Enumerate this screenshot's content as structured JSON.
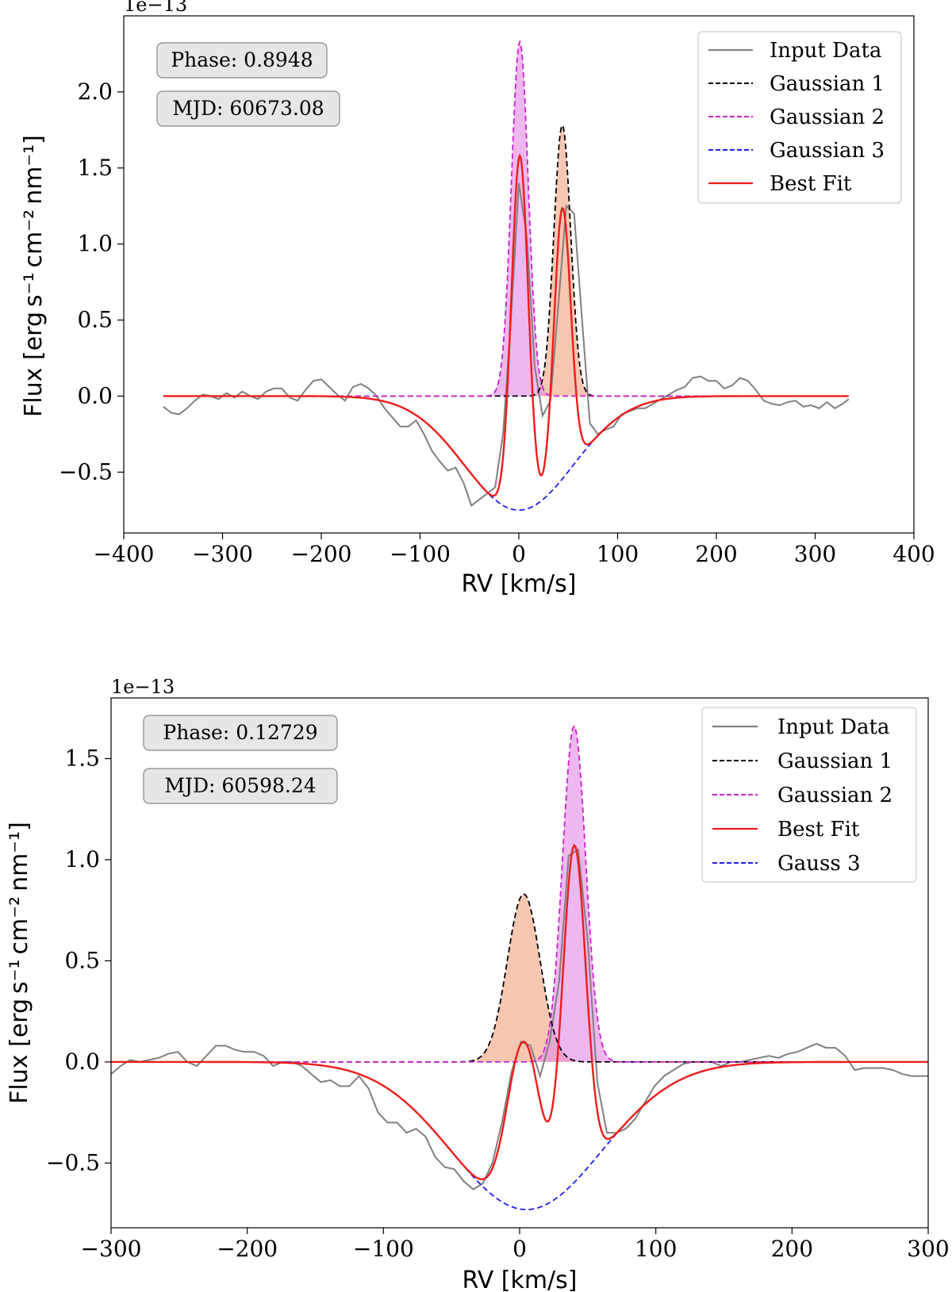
{
  "chart_data": [
    {
      "type": "line",
      "offset_label": "1e−13",
      "xlabel": "RV [km/s]",
      "ylabel": "Flux [erg s⁻¹ cm⁻² nm⁻¹]",
      "xlim": [
        -400,
        400
      ],
      "ylim": [
        -0.9,
        2.5
      ],
      "xticks": [
        -400,
        -300,
        -200,
        -100,
        0,
        100,
        200,
        300,
        400
      ],
      "xtick_labels": [
        "−400",
        "−300",
        "−200",
        "−100",
        "0",
        "100",
        "200",
        "300",
        "400"
      ],
      "yticks": [
        -0.5,
        0.0,
        0.5,
        1.0,
        1.5,
        2.0
      ],
      "ytick_labels": [
        "−0.5",
        "0.0",
        "0.5",
        "1.0",
        "1.5",
        "2.0"
      ],
      "annotations": [
        "Phase: 0.8948",
        "MJD: 60673.08"
      ],
      "legend_position": "top-right",
      "input_data": {
        "name": "Input Data",
        "color": "#808080",
        "x": [
          -360,
          -352,
          -344,
          -336,
          -328,
          -320,
          -312,
          -304,
          -296,
          -288,
          -280,
          -272,
          -264,
          -256,
          -248,
          -240,
          -232,
          -224,
          -216,
          -208,
          -200,
          -192,
          -184,
          -176,
          -168,
          -160,
          -152,
          -144,
          -136,
          -128,
          -120,
          -112,
          -104,
          -96,
          -88,
          -80,
          -72,
          -64,
          -56,
          -48,
          -40,
          -32,
          -24,
          -16,
          -8,
          0,
          8,
          16,
          24,
          32,
          40,
          48,
          56,
          64,
          72,
          80,
          88,
          96,
          104,
          112,
          120,
          128,
          136,
          144,
          152,
          160,
          168,
          176,
          184,
          192,
          200,
          208,
          216,
          224,
          232,
          240,
          248,
          256,
          264,
          272,
          280,
          288,
          296,
          304,
          312,
          320,
          328,
          334
        ],
        "y": [
          -0.07,
          -0.11,
          -0.12,
          -0.08,
          -0.03,
          0.01,
          0.0,
          -0.02,
          0.02,
          -0.01,
          0.03,
          0.0,
          -0.02,
          0.03,
          0.05,
          0.05,
          -0.01,
          -0.03,
          0.04,
          0.1,
          0.11,
          0.06,
          0.01,
          -0.03,
          0.06,
          0.08,
          0.05,
          0.0,
          -0.08,
          -0.14,
          -0.2,
          -0.2,
          -0.16,
          -0.25,
          -0.36,
          -0.43,
          -0.49,
          -0.47,
          -0.57,
          -0.72,
          -0.68,
          -0.64,
          -0.6,
          -0.25,
          0.5,
          1.4,
          1.05,
          0.2,
          -0.13,
          -0.03,
          0.6,
          1.25,
          1.2,
          0.5,
          -0.18,
          -0.25,
          -0.22,
          -0.2,
          -0.12,
          -0.1,
          -0.08,
          -0.08,
          -0.05,
          -0.02,
          0.01,
          0.04,
          0.06,
          0.12,
          0.13,
          0.1,
          0.1,
          0.05,
          0.07,
          0.12,
          0.1,
          0.04,
          -0.03,
          -0.05,
          -0.06,
          -0.04,
          -0.03,
          -0.07,
          -0.06,
          -0.08,
          -0.04,
          -0.08,
          -0.05,
          -0.02
        ]
      },
      "gaussians": [
        {
          "name": "Gaussian 1",
          "color": "#000000",
          "amp": 1.78,
          "mu": 44,
          "sigma": 8.5,
          "fill": "#f4a582",
          "x_range": [
            -360,
            334
          ]
        },
        {
          "name": "Gaussian 2",
          "color": "#cc22cc",
          "amp": 2.33,
          "mu": 1,
          "sigma": 8.5,
          "fill": "#e58ae5",
          "x_range": [
            -360,
            334
          ]
        },
        {
          "name": "Gaussian 3",
          "color": "#1f1fee",
          "amp": -0.75,
          "mu": 0,
          "sigma": 55,
          "x_range": [
            -30,
            80
          ]
        }
      ],
      "best_fit": {
        "name": "Best Fit",
        "color": "#ee1c1c"
      },
      "legend": [
        "Input Data",
        "Gaussian 1",
        "Gaussian 2",
        "Gaussian 3",
        "Best Fit"
      ]
    },
    {
      "type": "line",
      "offset_label": "1e−13",
      "xlabel": "RV [km/s]",
      "ylabel": "Flux [erg s⁻¹ cm⁻² nm⁻¹]",
      "xlim": [
        -300,
        300
      ],
      "ylim": [
        -0.82,
        1.8
      ],
      "xticks": [
        -300,
        -200,
        -100,
        0,
        100,
        200,
        300
      ],
      "xtick_labels": [
        "−300",
        "−200",
        "−100",
        "0",
        "100",
        "200",
        "300"
      ],
      "yticks": [
        -0.5,
        0.0,
        0.5,
        1.0,
        1.5
      ],
      "ytick_labels": [
        "−0.5",
        "0.0",
        "0.5",
        "1.0",
        "1.5"
      ],
      "annotations": [
        "Phase: 0.12729",
        "MJD: 60598.24"
      ],
      "legend_position": "top-right",
      "input_data": {
        "name": "Input Data",
        "color": "#808080",
        "x": [
          -300,
          -293,
          -286,
          -279,
          -272,
          -265,
          -258,
          -251,
          -244,
          -237,
          -230,
          -223,
          -216,
          -209,
          -202,
          -195,
          -188,
          -181,
          -174,
          -167,
          -160,
          -153,
          -146,
          -139,
          -132,
          -125,
          -118,
          -111,
          -104,
          -97,
          -90,
          -83,
          -76,
          -69,
          -62,
          -55,
          -48,
          -41,
          -34,
          -27,
          -20,
          -13,
          -6,
          1,
          8,
          15,
          22,
          29,
          36,
          43,
          50,
          57,
          64,
          71,
          78,
          85,
          92,
          99,
          106,
          113,
          120,
          127,
          134,
          141,
          148,
          155,
          162,
          169,
          176,
          183,
          190,
          197,
          204,
          211,
          218,
          225,
          232,
          239,
          246,
          253,
          260,
          267,
          274,
          281,
          288,
          295,
          300
        ],
        "y": [
          -0.06,
          -0.02,
          0.01,
          0.0,
          0.01,
          0.02,
          0.04,
          0.05,
          0.0,
          -0.02,
          0.03,
          0.08,
          0.08,
          0.06,
          0.05,
          0.05,
          0.03,
          -0.02,
          0.0,
          0.0,
          -0.02,
          -0.06,
          -0.1,
          -0.09,
          -0.12,
          -0.12,
          -0.07,
          -0.13,
          -0.25,
          -0.3,
          -0.3,
          -0.35,
          -0.33,
          -0.37,
          -0.47,
          -0.52,
          -0.53,
          -0.59,
          -0.63,
          -0.6,
          -0.5,
          -0.3,
          -0.05,
          0.1,
          0.08,
          -0.07,
          0.1,
          0.4,
          1.02,
          1.05,
          0.6,
          -0.1,
          -0.35,
          -0.35,
          -0.33,
          -0.28,
          -0.2,
          -0.12,
          -0.07,
          -0.04,
          -0.01,
          0.0,
          0.0,
          0.0,
          -0.02,
          0.0,
          0.0,
          0.01,
          0.02,
          0.03,
          0.02,
          0.04,
          0.05,
          0.07,
          0.09,
          0.07,
          0.07,
          0.03,
          -0.04,
          -0.03,
          -0.03,
          -0.03,
          -0.04,
          -0.06,
          -0.07,
          -0.07,
          -0.07
        ]
      },
      "gaussians": [
        {
          "name": "Gaussian 1",
          "color": "#000000",
          "amp": 0.83,
          "mu": 3,
          "sigma": 12,
          "fill": "#f4a582",
          "x_range": [
            -300,
            300
          ]
        },
        {
          "name": "Gaussian 2",
          "color": "#cc22cc",
          "amp": 1.66,
          "mu": 40,
          "sigma": 8.5,
          "fill": "#e58ae5",
          "x_range": [
            -300,
            300
          ]
        },
        {
          "name": "Gauss 3",
          "color": "#1f1fee",
          "amp": -0.73,
          "mu": 5,
          "sigma": 55,
          "x_range": [
            -300,
            300
          ]
        }
      ],
      "best_fit": {
        "name": "Best Fit",
        "color": "#ee1c1c"
      },
      "legend": [
        "Input Data",
        "Gaussian 1",
        "Gaussian 2",
        "Best Fit",
        "Gauss 3"
      ]
    }
  ]
}
